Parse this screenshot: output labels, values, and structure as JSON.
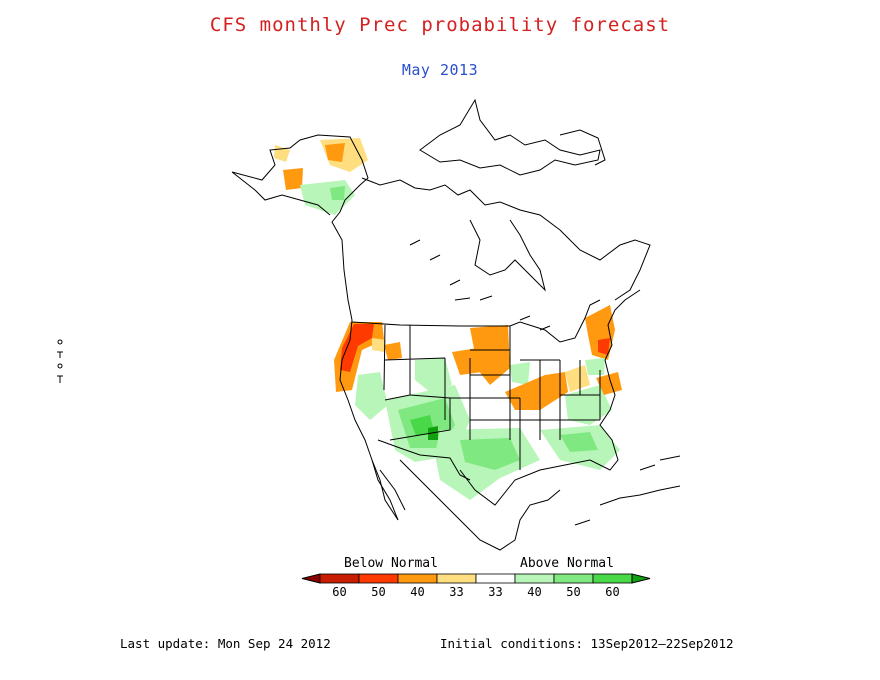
{
  "title": "CFS monthly Prec probability forecast",
  "subtitle": "May 2013",
  "legend": {
    "below_label": "Below Normal",
    "above_label": "Above Normal",
    "bins": [
      {
        "label": "60",
        "color": "#c81e00"
      },
      {
        "label": "50",
        "color": "#ff3a00"
      },
      {
        "label": "40",
        "color": "#ff9a10"
      },
      {
        "label": "33",
        "color": "#ffde80"
      },
      {
        "label": "33",
        "color": "#ffffff"
      },
      {
        "label": "40",
        "color": "#b8f5b8"
      },
      {
        "label": "50",
        "color": "#80e880"
      },
      {
        "label": "60",
        "color": "#48d848"
      }
    ],
    "left_arrow_color": "#8a0000",
    "right_arrow_color": "#10a010"
  },
  "footer": {
    "last_update": "Last update: Mon Sep 24 2012",
    "initial_conditions": "Initial conditions: 13Sep2012–22Sep2012"
  },
  "colors": {
    "below_strong": "#ff3a00",
    "below_moderate": "#ff9a10",
    "below_light": "#ffde80",
    "above_light": "#b8f5b8",
    "above_moderate": "#80e880",
    "above_strong": "#48d848",
    "above_very_strong": "#10a010"
  }
}
